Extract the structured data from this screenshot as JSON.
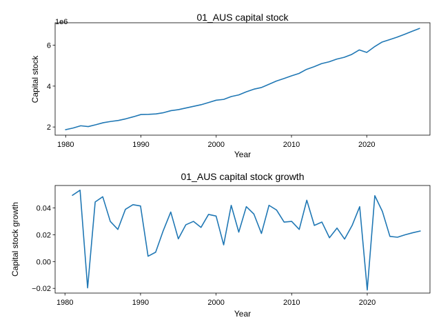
{
  "chart_data": [
    {
      "type": "line",
      "title": "01_AUS capital stock",
      "xlabel": "Year",
      "ylabel": "Capital stock",
      "y_offset_label": "1e6",
      "xlim": [
        1978.6,
        2028.4
      ],
      "ylim": [
        1.6,
        7.1
      ],
      "y_scale_note": "values in units of 1e6",
      "xticks": [
        1980,
        1990,
        2000,
        2010,
        2020
      ],
      "yticks": [
        2,
        4,
        6
      ],
      "grid": false,
      "color": "#1f77b4",
      "series": [
        {
          "x": [
            1980,
            1981,
            1982,
            1983,
            1984,
            1985,
            1986,
            1987,
            1988,
            1989,
            1990,
            1991,
            1992,
            1993,
            1994,
            1995,
            1996,
            1997,
            1998,
            1999,
            2000,
            2001,
            2002,
            2003,
            2004,
            2005,
            2006,
            2007,
            2008,
            2009,
            2010,
            2011,
            2012,
            2013,
            2014,
            2015,
            2016,
            2017,
            2018,
            2019,
            2020,
            2021,
            2022,
            2023,
            2024,
            2025,
            2026,
            2027
          ],
          "values": [
            1.87,
            1.95,
            2.06,
            2.02,
            2.11,
            2.21,
            2.27,
            2.32,
            2.4,
            2.5,
            2.61,
            2.62,
            2.64,
            2.7,
            2.8,
            2.85,
            2.93,
            3.01,
            3.09,
            3.2,
            3.31,
            3.35,
            3.49,
            3.57,
            3.72,
            3.85,
            3.93,
            4.09,
            4.25,
            4.37,
            4.5,
            4.62,
            4.82,
            4.95,
            5.1,
            5.19,
            5.32,
            5.41,
            5.55,
            5.77,
            5.65,
            5.92,
            6.15,
            6.27,
            6.39,
            6.53,
            6.68,
            6.82
          ]
        }
      ]
    },
    {
      "type": "line",
      "title": "01_AUS capital stock growth",
      "xlabel": "Year",
      "ylabel": "Capital stock growth",
      "xlim": [
        1978.7,
        2028.3
      ],
      "ylim": [
        -0.0235,
        0.0568
      ],
      "xticks": [
        1980,
        1990,
        2000,
        2010,
        2020
      ],
      "yticks": [
        -0.02,
        0.0,
        0.02,
        0.04
      ],
      "ytick_labels": [
        "−0.02",
        "0.00",
        "0.02",
        "0.04"
      ],
      "grid": false,
      "color": "#1f77b4",
      "series": [
        {
          "x": [
            1981,
            1982,
            1983,
            1984,
            1985,
            1986,
            1987,
            1988,
            1989,
            1990,
            1991,
            1992,
            1993,
            1994,
            1995,
            1996,
            1997,
            1998,
            1999,
            2000,
            2001,
            2002,
            2003,
            2004,
            2005,
            2006,
            2007,
            2008,
            2009,
            2010,
            2011,
            2012,
            2013,
            2014,
            2015,
            2016,
            2017,
            2018,
            2019,
            2020,
            2021,
            2022,
            2023,
            2024,
            2025,
            2026,
            2027
          ],
          "values": [
            0.0495,
            0.0533,
            -0.0196,
            0.0445,
            0.0484,
            0.03,
            0.024,
            0.039,
            0.0425,
            0.0415,
            0.004,
            0.007,
            0.023,
            0.037,
            0.017,
            0.0275,
            0.03,
            0.0255,
            0.0352,
            0.034,
            0.0125,
            0.042,
            0.022,
            0.041,
            0.0355,
            0.021,
            0.042,
            0.0385,
            0.0295,
            0.03,
            0.024,
            0.0458,
            0.027,
            0.0295,
            0.0178,
            0.025,
            0.0168,
            0.027,
            0.041,
            -0.0212,
            0.0492,
            0.0375,
            0.0188,
            0.0182,
            0.02,
            0.0215,
            0.0228
          ]
        }
      ]
    }
  ]
}
